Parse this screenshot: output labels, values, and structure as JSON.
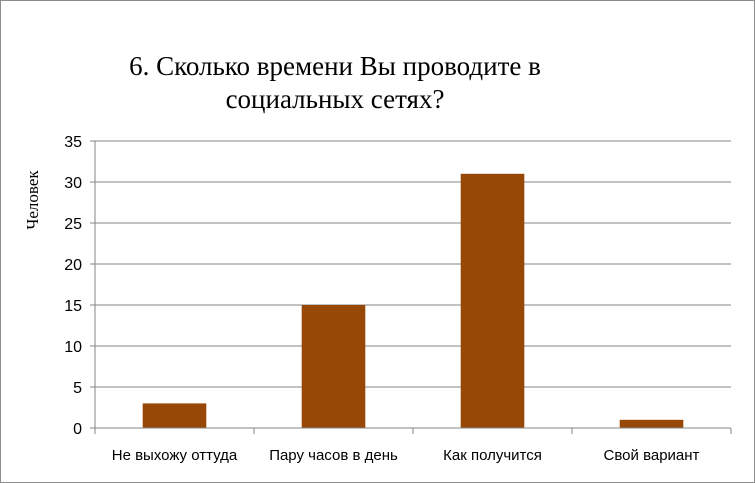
{
  "chart_data": {
    "type": "bar",
    "title_lines": [
      "6. Сколько времени Вы проводите в",
      "социальных  сетях?"
    ],
    "ylabel": "Человек",
    "xlabel": "",
    "categories": [
      "Не выхожу оттуда",
      "Пару часов в день",
      "Как получится",
      "Свой вариант"
    ],
    "values": [
      3,
      15,
      31,
      1
    ],
    "ylim": [
      0,
      35
    ],
    "yticks": [
      0,
      5,
      10,
      15,
      20,
      25,
      30,
      35
    ],
    "grid": true,
    "legend": "none",
    "bar_color": "#974706",
    "grid_color": "#868686"
  }
}
